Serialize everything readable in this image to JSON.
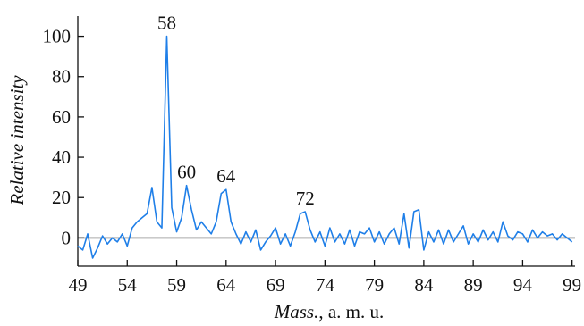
{
  "chart_data": {
    "type": "line",
    "y_label": "Relative intensity",
    "x_label": [
      "Mass.",
      ", a. m. u."
    ],
    "x": [
      49,
      49.5,
      50,
      50.5,
      51,
      51.5,
      52,
      52.5,
      53,
      53.5,
      54,
      54.5,
      55,
      55.5,
      56,
      56.5,
      57,
      57.5,
      58,
      58.5,
      59,
      59.5,
      60,
      60.5,
      61,
      61.5,
      62,
      62.5,
      63,
      63.5,
      64,
      64.5,
      65,
      65.5,
      66,
      66.5,
      67,
      67.5,
      68,
      68.5,
      69,
      69.5,
      70,
      70.5,
      71,
      71.5,
      72,
      72.5,
      73,
      73.5,
      74,
      74.5,
      75,
      75.5,
      76,
      76.5,
      77,
      77.5,
      78,
      78.5,
      79,
      79.5,
      80,
      80.5,
      81,
      81.5,
      82,
      82.5,
      83,
      83.5,
      84,
      84.5,
      85,
      85.5,
      86,
      86.5,
      87,
      87.5,
      88,
      88.5,
      89,
      89.5,
      90,
      90.5,
      91,
      91.5,
      92,
      92.5,
      93,
      93.5,
      94,
      94.5,
      95,
      95.5,
      96,
      96.5,
      97,
      97.5,
      98,
      98.5,
      99
    ],
    "series": [
      {
        "color": "#1f7fe8",
        "values": [
          -4,
          -6,
          2,
          -10,
          -5,
          1,
          -3,
          0,
          -2,
          2,
          -4,
          5,
          8,
          10,
          12,
          25,
          8,
          5,
          100,
          15,
          3,
          10,
          26,
          14,
          4,
          8,
          5,
          2,
          8,
          22,
          24,
          8,
          2,
          -3,
          3,
          -2,
          4,
          -6,
          -2,
          1,
          5,
          -3,
          2,
          -4,
          3,
          12,
          13,
          4,
          -2,
          3,
          -4,
          5,
          -2,
          2,
          -3,
          4,
          -4,
          3,
          2,
          5,
          -2,
          3,
          -3,
          2,
          5,
          -3,
          12,
          -5,
          13,
          14,
          -6,
          3,
          -2,
          4,
          -3,
          4,
          -2,
          2,
          6,
          -3,
          2,
          -2,
          4,
          -1,
          3,
          -2,
          8,
          1,
          -1,
          3,
          2,
          -2,
          4,
          0,
          3,
          1,
          2,
          -1,
          2,
          0,
          -2
        ]
      }
    ],
    "annotations": [
      "58",
      "60",
      "64",
      "72"
    ],
    "xlim": [
      49,
      99.3
    ],
    "ylim": [
      -14,
      110
    ],
    "xticks": [
      49,
      54,
      59,
      64,
      69,
      74,
      79,
      84,
      89,
      94,
      99
    ],
    "yticks": [
      0,
      20,
      40,
      60,
      80,
      100
    ],
    "zero_line_color": "#aaaaaa"
  }
}
